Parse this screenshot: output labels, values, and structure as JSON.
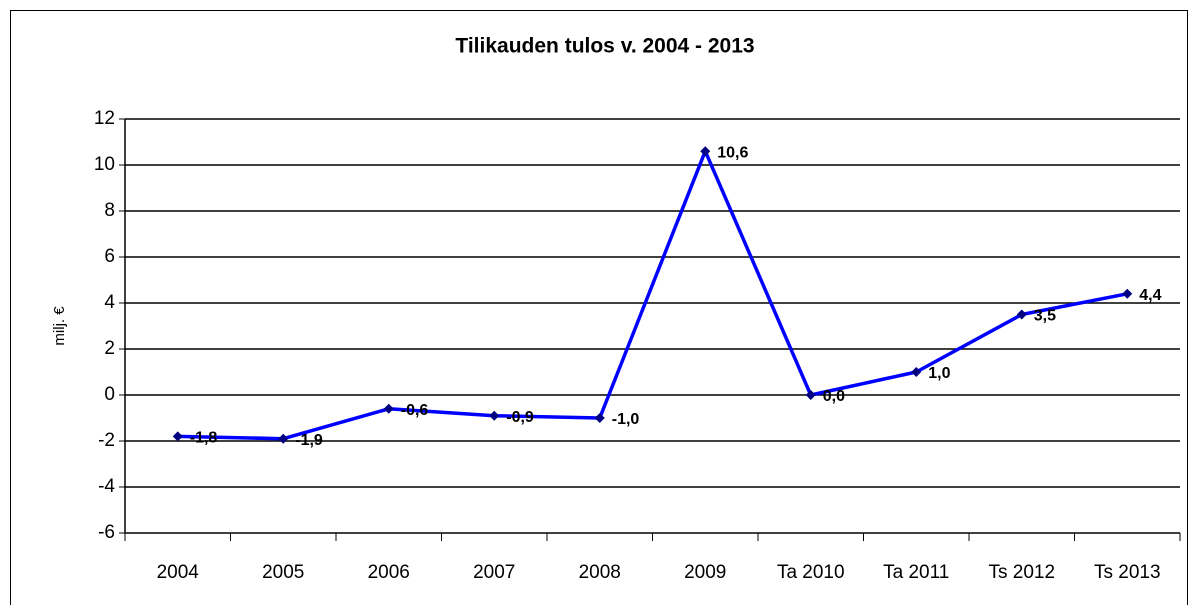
{
  "chart_data": {
    "type": "line",
    "title": "Tilikauden tulos v. 2004 - 2013",
    "y_label": "milj. €",
    "categories": [
      "2004",
      "2005",
      "2006",
      "2007",
      "2008",
      "2009",
      "Ta 2010",
      "Ta 2011",
      "Ts 2012",
      "Ts 2013"
    ],
    "series": [
      {
        "name": "Tilikauden tulos",
        "color": "#0000ff",
        "marker_color": "#000080",
        "values": [
          -1.8,
          -1.9,
          -0.6,
          -0.9,
          -1.0,
          10.6,
          0.0,
          1.0,
          3.5,
          4.4
        ],
        "value_labels": [
          "-1,8",
          "-1,9",
          "-0,6",
          "-0,9",
          "-1,0",
          "10,6",
          "0,0",
          "1,0",
          "3,5",
          "4,4"
        ]
      }
    ],
    "ylim": [
      -6,
      12
    ],
    "yticks": [
      -6,
      -4,
      -2,
      0,
      2,
      4,
      6,
      8,
      10,
      12
    ],
    "grid": true
  }
}
